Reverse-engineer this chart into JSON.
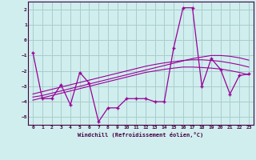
{
  "x": [
    0,
    1,
    2,
    3,
    4,
    5,
    6,
    7,
    8,
    9,
    10,
    11,
    12,
    13,
    14,
    15,
    16,
    17,
    18,
    19,
    20,
    21,
    22,
    23
  ],
  "y_main": [
    -0.8,
    -3.8,
    -3.8,
    -2.9,
    -4.2,
    -2.1,
    -2.8,
    -5.3,
    -4.4,
    -4.4,
    -3.8,
    -3.8,
    -3.8,
    -4.0,
    -4.0,
    -0.5,
    2.1,
    2.1,
    -3.0,
    -1.2,
    -1.9,
    -3.5,
    -2.3,
    -2.2
  ],
  "y_line1": [
    -3.7,
    -3.6,
    -3.45,
    -3.3,
    -3.15,
    -3.0,
    -2.85,
    -2.7,
    -2.55,
    -2.4,
    -2.25,
    -2.1,
    -1.95,
    -1.8,
    -1.65,
    -1.5,
    -1.35,
    -1.2,
    -1.1,
    -1.0,
    -1.0,
    -1.05,
    -1.15,
    -1.3
  ],
  "y_line2": [
    -3.9,
    -3.75,
    -3.6,
    -3.45,
    -3.3,
    -3.15,
    -3.0,
    -2.85,
    -2.7,
    -2.55,
    -2.4,
    -2.25,
    -2.1,
    -2.0,
    -1.9,
    -1.82,
    -1.75,
    -1.75,
    -1.78,
    -1.82,
    -1.88,
    -1.98,
    -2.1,
    -2.25
  ],
  "y_line3": [
    -3.5,
    -3.35,
    -3.2,
    -3.05,
    -2.9,
    -2.75,
    -2.6,
    -2.45,
    -2.3,
    -2.15,
    -2.0,
    -1.85,
    -1.7,
    -1.58,
    -1.48,
    -1.4,
    -1.32,
    -1.28,
    -1.28,
    -1.32,
    -1.38,
    -1.48,
    -1.6,
    -1.75
  ],
  "color_main": "#990099",
  "color_lines": "#990099",
  "bg_color": "#d0eeee",
  "grid_color": "#aacccc",
  "xlabel": "Windchill (Refroidissement éolien,°C)",
  "ylim": [
    -5.5,
    2.5
  ],
  "xlim": [
    -0.5,
    23.5
  ],
  "yticks": [
    -5,
    -4,
    -3,
    -2,
    -1,
    0,
    1,
    2
  ],
  "xticks": [
    0,
    1,
    2,
    3,
    4,
    5,
    6,
    7,
    8,
    9,
    10,
    11,
    12,
    13,
    14,
    15,
    16,
    17,
    18,
    19,
    20,
    21,
    22,
    23
  ]
}
